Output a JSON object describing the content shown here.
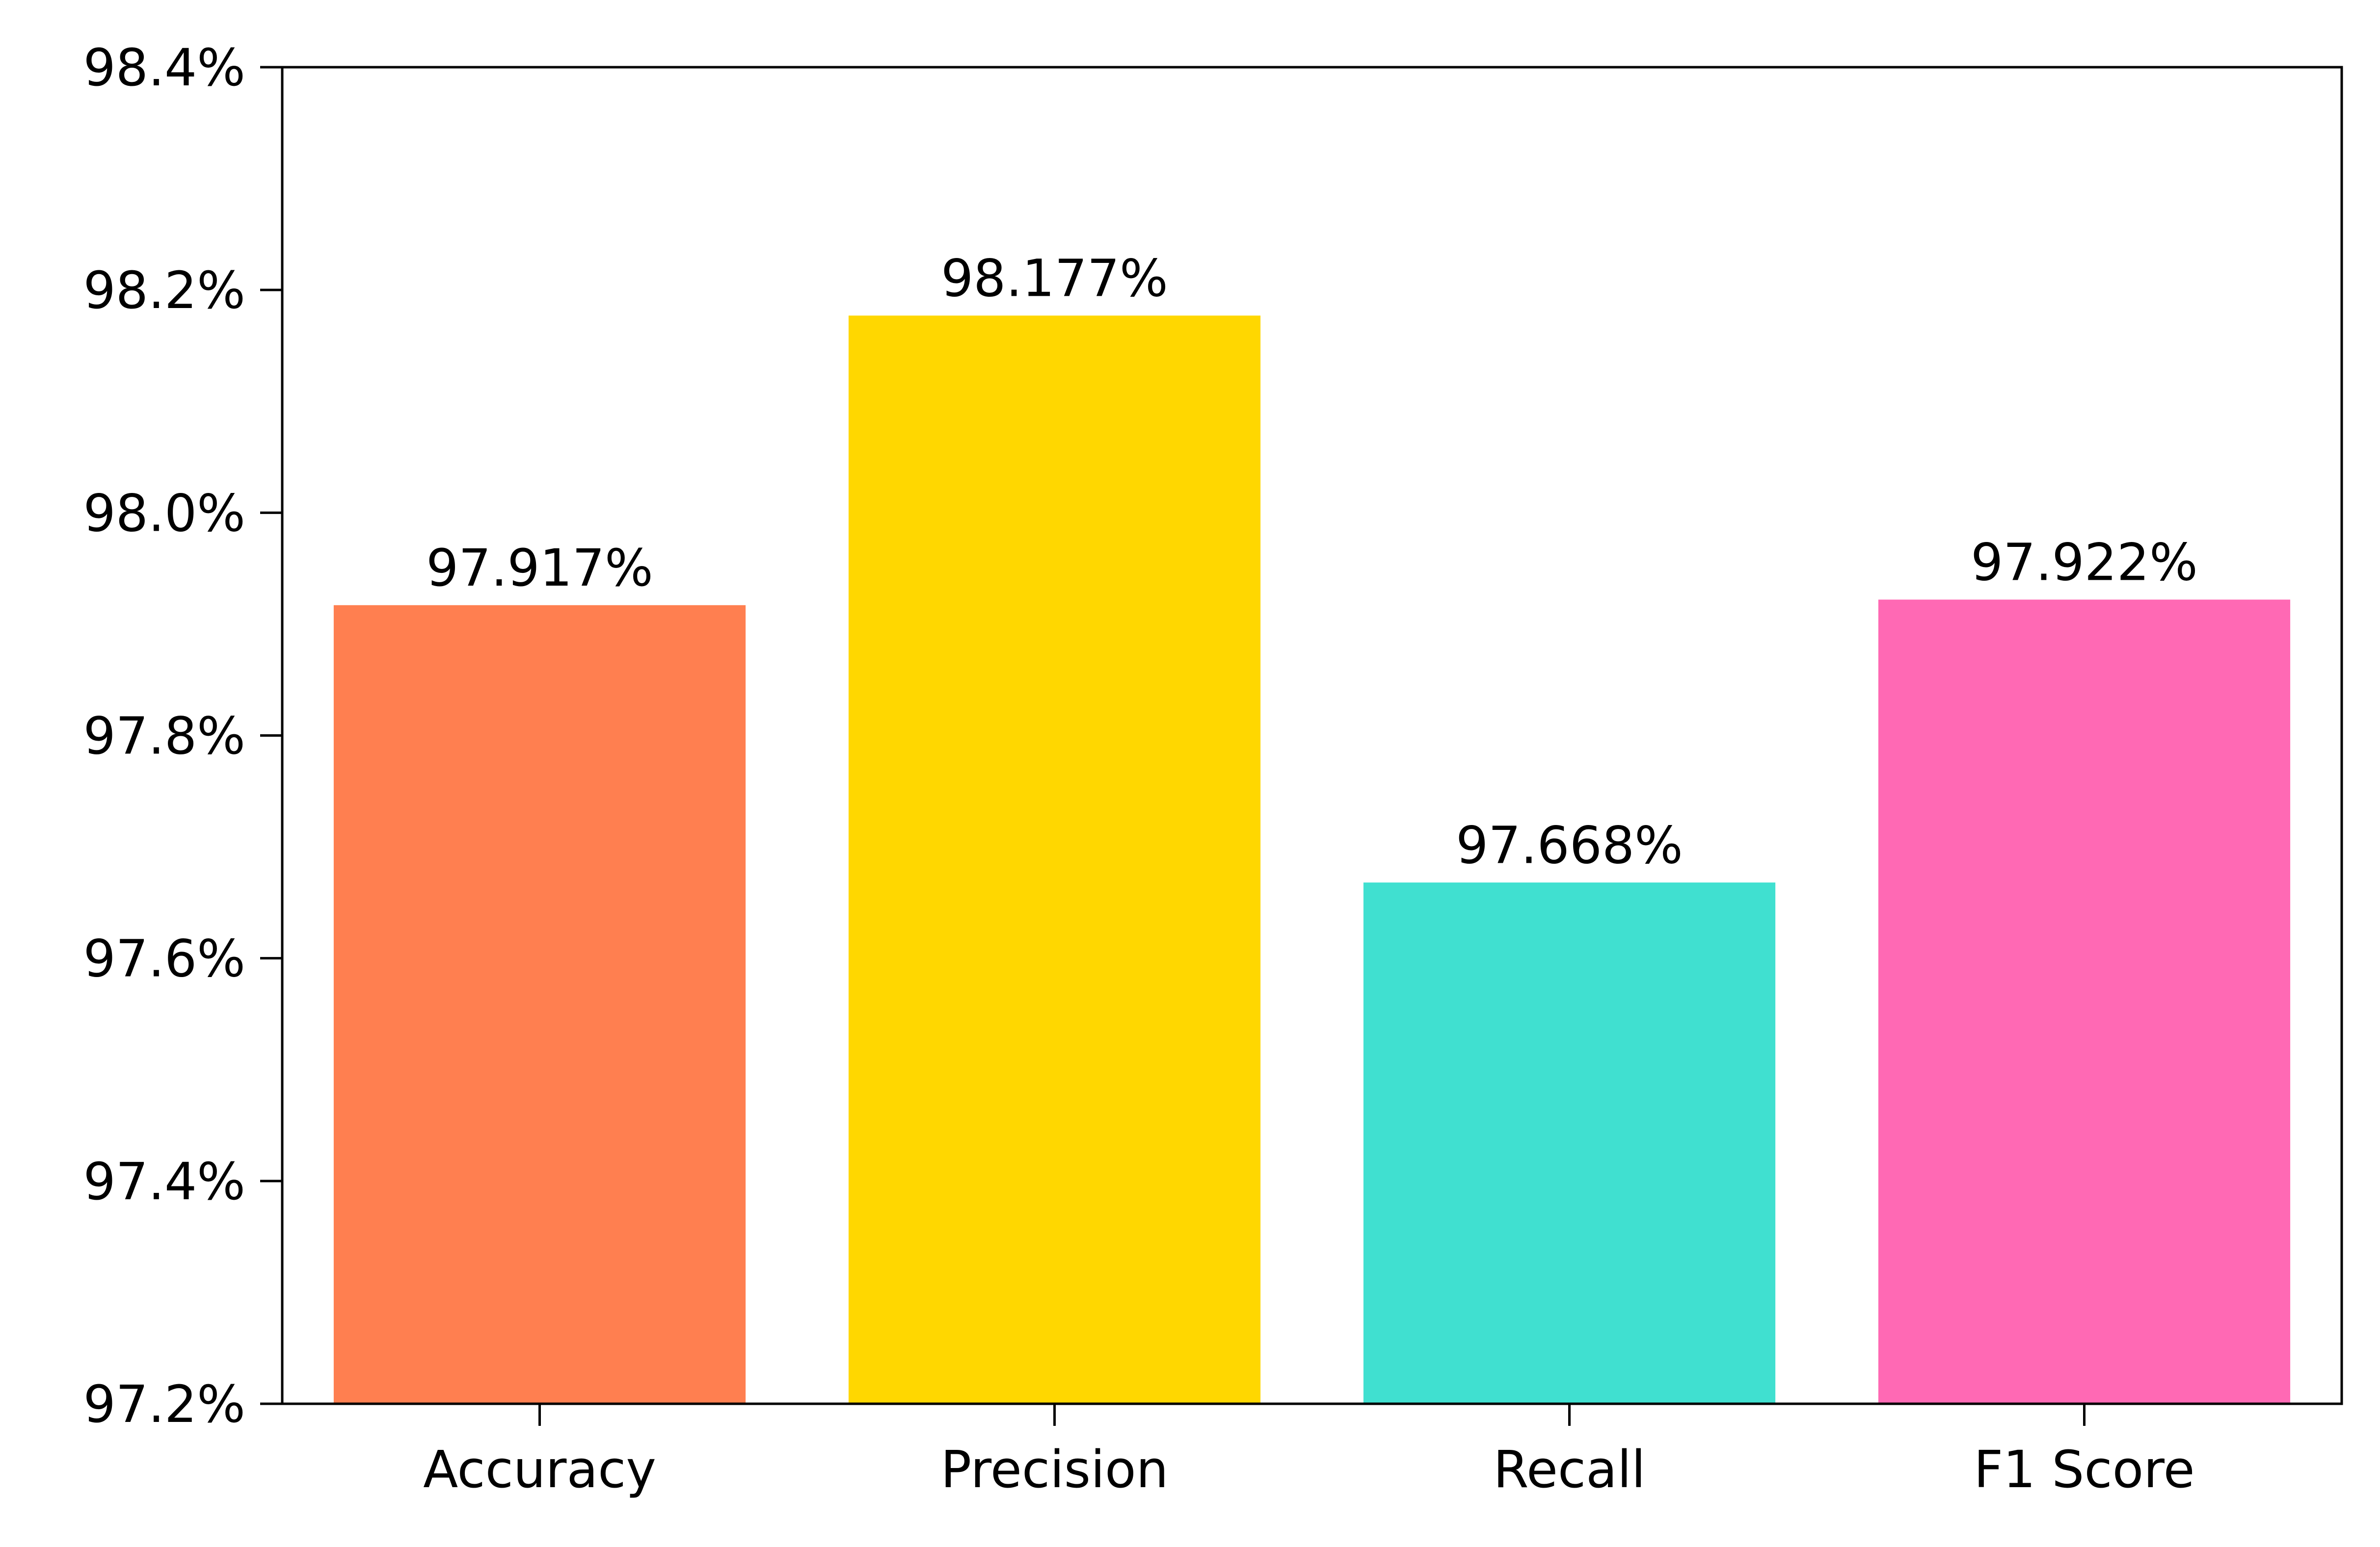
{
  "chart_data": {
    "type": "bar",
    "categories": [
      "Accuracy",
      "Precision",
      "Recall",
      "F1 Score"
    ],
    "values": [
      97.917,
      98.177,
      97.668,
      97.922
    ],
    "value_labels": [
      "97.917%",
      "98.177%",
      "97.668%",
      "97.922%"
    ],
    "colors": [
      "#FF7F50",
      "#FFD700",
      "#40E0D0",
      "#FF69B4"
    ],
    "ylim": [
      97.2,
      98.4
    ],
    "yticks": [
      97.2,
      97.4,
      97.6,
      97.8,
      98.0,
      98.2,
      98.4
    ],
    "ytick_labels": [
      "97.2%",
      "97.4%",
      "97.6%",
      "97.8%",
      "98.0%",
      "98.2%",
      "98.4%"
    ],
    "title": "",
    "xlabel": "",
    "ylabel": "",
    "grid": false,
    "legend": "none"
  }
}
